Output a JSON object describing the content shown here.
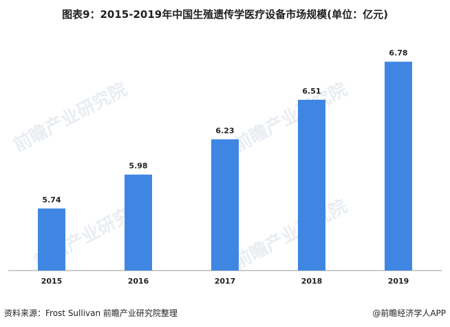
{
  "title": "图表9：2015-2019年中国生殖遗传学医疗设备市场规模(单位：亿元)",
  "source": "资料来源：Frost Sullivan 前瞻产业研究院整理",
  "brand": "@前瞻经济学人APP",
  "watermark": "前瞻产业研究院",
  "colors": {
    "bar": "#3f86e2",
    "axis": "#9a9a9a",
    "label": "#222222",
    "watermark": "#e9edf2"
  },
  "chart_data": {
    "type": "bar",
    "categories": [
      "2015",
      "2016",
      "2017",
      "2018",
      "2019"
    ],
    "values": [
      5.74,
      5.98,
      6.23,
      6.51,
      6.78
    ],
    "data_labels": [
      "5.74",
      "5.98",
      "6.23",
      "6.51",
      "6.78"
    ],
    "xlabel": "",
    "ylabel": "",
    "ylim": [
      5.3,
      6.9
    ],
    "grid": false,
    "legend": "none"
  }
}
